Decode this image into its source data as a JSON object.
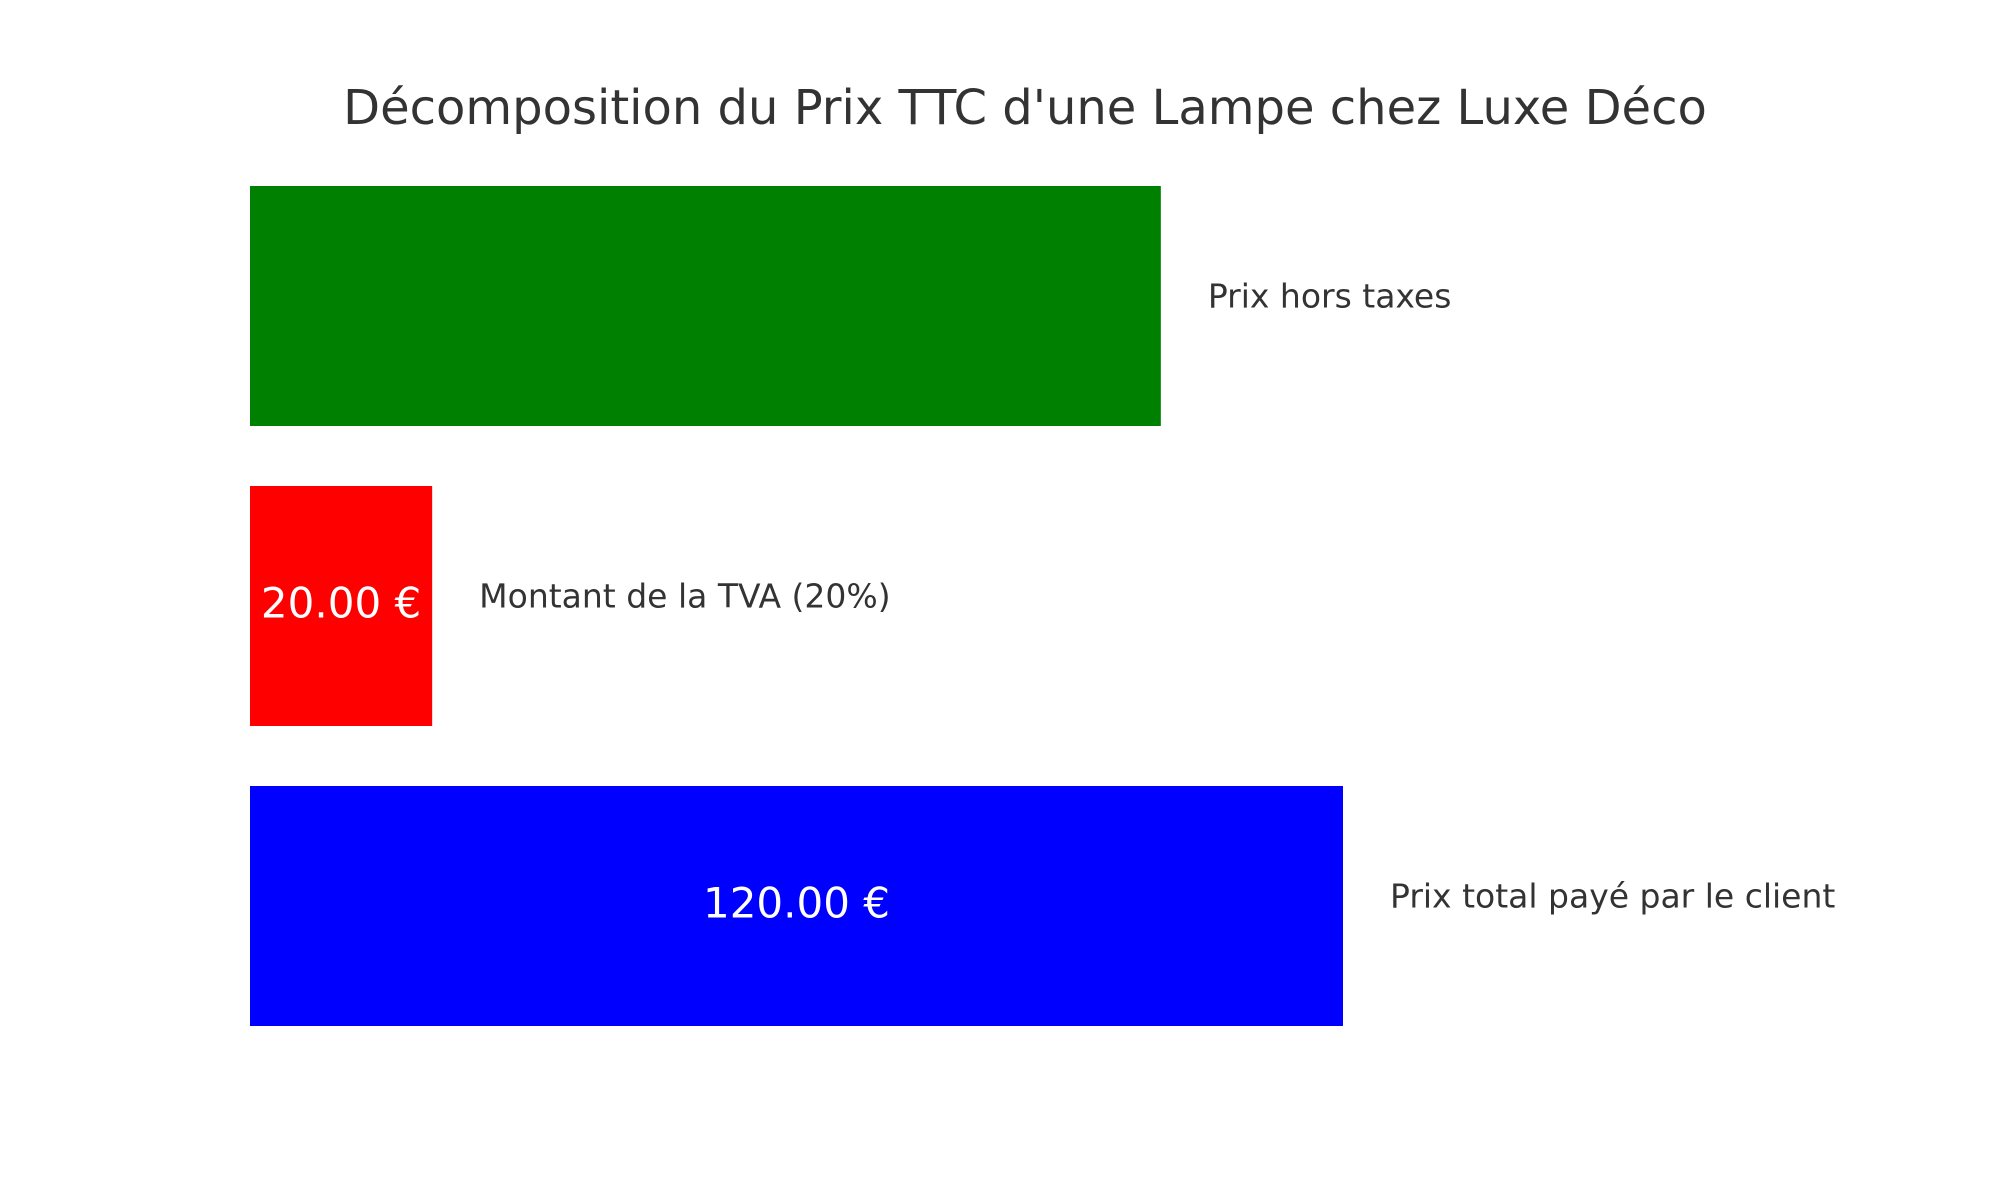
{
  "chart_data": {
    "type": "barh",
    "title": "Décomposition du Prix TTC d'une Lampe chez Luxe Déco",
    "categories": [
      "Prix hors taxes",
      "Montant de la TVA (20%)",
      "Prix total payé par le client"
    ],
    "values": [
      100,
      20,
      120
    ],
    "value_labels": [
      null,
      "20.00 €",
      "120.00 €"
    ],
    "colors": [
      "#008000",
      "#ff0000",
      "#0000ff"
    ]
  }
}
